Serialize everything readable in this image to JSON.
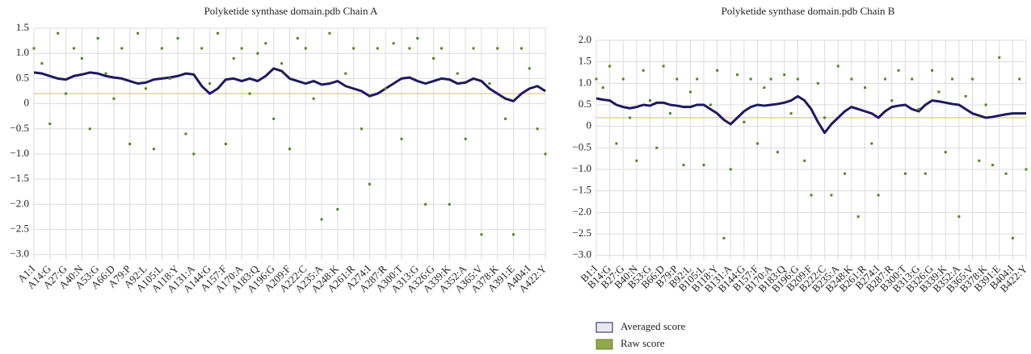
{
  "chart_data": [
    {
      "type": "line",
      "title": "Polyketide synthase domain.pdb Chain A",
      "categories": [
        "A1:I",
        null,
        "A14:G",
        null,
        "A27:G",
        null,
        "A40:N",
        null,
        "A53:G",
        null,
        "A66:D",
        null,
        "A79:P",
        null,
        "A92:L",
        null,
        "A105:L",
        null,
        "A118:Y",
        null,
        "A131:A",
        null,
        "A144:G",
        null,
        "A157:F",
        null,
        "A170:A",
        null,
        "A183:Q",
        null,
        "A196:G",
        null,
        "A209:F",
        null,
        "A222:C",
        null,
        "A235:A",
        null,
        "A248:K",
        null,
        "A261:R",
        null,
        "A274:I",
        null,
        "A287:R",
        null,
        "A300:T",
        null,
        "A313:G",
        null,
        "A326:G",
        null,
        "A339:K",
        null,
        "A352:A",
        null,
        "A365:V",
        null,
        "A378:K",
        null,
        "A391:E",
        null,
        "A404:I",
        null,
        "A422:Y"
      ],
      "series": [
        {
          "name": "Averaged score",
          "type": "line",
          "color": "#1f1a5e",
          "values": [
            0.62,
            0.6,
            0.55,
            0.5,
            0.48,
            0.55,
            0.58,
            0.62,
            0.6,
            0.55,
            0.52,
            0.5,
            0.45,
            0.4,
            0.42,
            0.48,
            0.5,
            0.52,
            0.55,
            0.6,
            0.58,
            0.35,
            0.2,
            0.3,
            0.48,
            0.5,
            0.45,
            0.5,
            0.45,
            0.55,
            0.7,
            0.65,
            0.5,
            0.45,
            0.4,
            0.45,
            0.38,
            0.4,
            0.45,
            0.35,
            0.3,
            0.25,
            0.15,
            0.2,
            0.3,
            0.4,
            0.5,
            0.52,
            0.45,
            0.4,
            0.45,
            0.5,
            0.48,
            0.4,
            0.42,
            0.5,
            0.45,
            0.3,
            0.2,
            0.1,
            0.05,
            0.2,
            0.3,
            0.35,
            0.25
          ]
        },
        {
          "name": "Raw score",
          "type": "scatter",
          "color": "#4a8a1a",
          "values": [
            1.1,
            0.8,
            -0.4,
            1.4,
            0.2,
            1.1,
            0.9,
            -0.5,
            1.3,
            0.6,
            0.1,
            1.1,
            -0.8,
            1.4,
            0.3,
            -0.9,
            1.1,
            0.5,
            1.3,
            -0.6,
            -1.0,
            1.1,
            0.4,
            1.4,
            -0.8,
            0.9,
            1.1,
            0.2,
            1.0,
            1.2,
            -0.3,
            0.8,
            -0.9,
            1.3,
            1.1,
            0.1,
            -2.3,
            1.4,
            -2.1,
            0.6,
            1.1,
            -0.5,
            -1.6,
            1.1,
            0.3,
            1.2,
            -0.7,
            1.1,
            1.3,
            -2.0,
            0.9,
            1.1,
            -2.0,
            0.6,
            -0.7,
            1.1,
            -2.6,
            0.4,
            1.1,
            -0.3,
            -2.6,
            1.1,
            0.7,
            -0.5,
            -1.0
          ]
        }
      ],
      "reference_line": {
        "value": 0.2,
        "color": "#e2e24a"
      },
      "ylim": [
        -3.1,
        1.5
      ],
      "yticks": [
        {
          "value": 1.5,
          "label": "1.5"
        },
        {
          "value": 1.0,
          "label": "1.0"
        },
        {
          "value": 0.5,
          "label": "0.5"
        },
        {
          "value": 0,
          "label": "0"
        },
        {
          "value": -0.5,
          "label": "−0.5"
        },
        {
          "value": -1.0,
          "label": "−1.0"
        },
        {
          "value": -1.5,
          "label": "−1.5"
        },
        {
          "value": -2.0,
          "label": "−2.0"
        },
        {
          "value": -2.5,
          "label": "−2.5"
        },
        {
          "value": -3.0,
          "label": "−3.0"
        }
      ],
      "grid": true,
      "legend": false
    },
    {
      "type": "line",
      "title": "Polyketide synthase domain.pdb Chain B",
      "categories": [
        "B1:I",
        null,
        "B14:G",
        null,
        "B27:G",
        null,
        "B40:N",
        null,
        "B53:G",
        null,
        "B66:D",
        null,
        "B79:P",
        null,
        "B92:L",
        null,
        "B105:L",
        null,
        "B118:Y",
        null,
        "B131:A",
        null,
        "B144:G",
        null,
        "B157:F",
        null,
        "B170:A",
        null,
        "B183:Q",
        null,
        "B196:G",
        null,
        "B209:F",
        null,
        "B222:C",
        null,
        "B235:A",
        null,
        "B248:K",
        null,
        "B261:R",
        null,
        "B274:I",
        null,
        "B287:R",
        null,
        "B300:T",
        null,
        "B313:G",
        null,
        "B326:G",
        null,
        "B339:K",
        null,
        "B352:A",
        null,
        "B365:V",
        null,
        "B378:K",
        null,
        "B391:E",
        null,
        "B404:I",
        null,
        "B422:Y"
      ],
      "series": [
        {
          "name": "Averaged score",
          "type": "line",
          "color": "#1f1a5e",
          "values": [
            0.65,
            0.62,
            0.6,
            0.5,
            0.45,
            0.42,
            0.45,
            0.5,
            0.48,
            0.55,
            0.55,
            0.5,
            0.48,
            0.45,
            0.45,
            0.5,
            0.5,
            0.4,
            0.3,
            0.15,
            0.05,
            0.2,
            0.35,
            0.45,
            0.5,
            0.48,
            0.5,
            0.52,
            0.55,
            0.6,
            0.7,
            0.6,
            0.4,
            0.1,
            -0.15,
            0.05,
            0.2,
            0.35,
            0.45,
            0.4,
            0.35,
            0.3,
            0.2,
            0.35,
            0.45,
            0.48,
            0.5,
            0.4,
            0.35,
            0.5,
            0.6,
            0.58,
            0.55,
            0.52,
            0.5,
            0.4,
            0.3,
            0.25,
            0.2,
            0.22,
            0.25,
            0.28,
            0.3,
            0.3,
            0.3
          ]
        },
        {
          "name": "Raw score",
          "type": "scatter",
          "color": "#4a8a1a",
          "values": [
            1.1,
            0.9,
            1.4,
            -0.4,
            1.1,
            0.2,
            -0.8,
            1.3,
            0.6,
            -0.5,
            1.4,
            0.3,
            1.1,
            -0.9,
            0.8,
            1.1,
            -0.9,
            0.5,
            1.3,
            -2.6,
            -1.0,
            1.2,
            0.1,
            1.1,
            -0.4,
            0.9,
            1.1,
            -0.6,
            1.2,
            0.3,
            1.1,
            -0.8,
            -1.6,
            1.0,
            0.2,
            -1.6,
            1.4,
            -1.1,
            1.1,
            -2.1,
            0.9,
            -0.4,
            -1.6,
            1.1,
            0.6,
            1.3,
            -1.1,
            1.1,
            0.4,
            -1.1,
            1.3,
            0.8,
            -0.6,
            1.1,
            -2.1,
            0.7,
            1.1,
            -0.8,
            0.5,
            -0.9,
            1.6,
            -1.1,
            -2.6,
            1.1,
            -1.0
          ]
        }
      ],
      "reference_line": {
        "value": 0.2,
        "color": "#e2e24a"
      },
      "ylim": [
        -3.1,
        2.0
      ],
      "yticks": [
        {
          "value": 2.0,
          "label": "2.0"
        },
        {
          "value": 1.5,
          "label": "1.5"
        },
        {
          "value": 1.0,
          "label": "1.0"
        },
        {
          "value": 0.5,
          "label": "0.5"
        },
        {
          "value": 0,
          "label": "0"
        },
        {
          "value": -0.5,
          "label": "−0.5"
        },
        {
          "value": -1.0,
          "label": "−1.0"
        },
        {
          "value": -1.5,
          "label": "−1.5"
        },
        {
          "value": -2.0,
          "label": "−2.0"
        },
        {
          "value": -2.5,
          "label": "−2.5"
        },
        {
          "value": -3.0,
          "label": "−3.0"
        }
      ],
      "grid": true,
      "legend": true
    }
  ]
}
